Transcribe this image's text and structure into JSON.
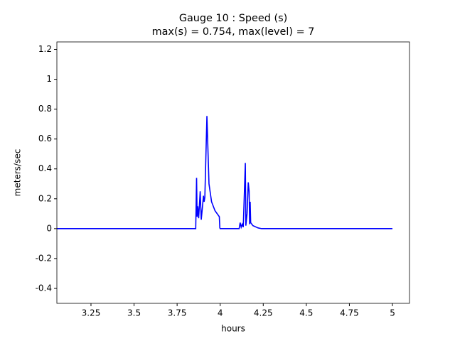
{
  "chart_data": {
    "type": "line",
    "title": "Gauge 10 : Speed (s)",
    "subtitle": "max(s) =   0.754,    max(level) = 7",
    "x_label": "hours",
    "y_label": "meters/sec",
    "xlim": [
      3.052,
      5.099
    ],
    "ylim": [
      -0.5,
      1.25
    ],
    "xticks": [
      3.25,
      3.5,
      3.75,
      4.0,
      4.25,
      4.5,
      4.75,
      5.0
    ],
    "yticks": [
      -0.4,
      -0.2,
      0.0,
      0.2,
      0.4,
      0.6,
      0.8,
      1.0,
      1.2
    ],
    "grid": false,
    "series": [
      {
        "name": "s",
        "color": "#0000ff",
        "x": [
          3.052,
          3.858,
          3.863,
          3.866,
          3.87,
          3.875,
          3.884,
          3.89,
          3.895,
          3.903,
          3.907,
          3.911,
          3.923,
          3.935,
          3.95,
          3.97,
          3.995,
          3.998,
          4.0,
          4.11,
          4.116,
          4.122,
          4.128,
          4.134,
          4.146,
          4.149,
          4.156,
          4.163,
          4.168,
          4.171,
          4.174,
          4.177,
          4.19,
          4.22,
          4.24,
          5.0
        ],
        "values": [
          0,
          0,
          0.34,
          0.08,
          0.15,
          0.07,
          0.25,
          0.06,
          0.12,
          0.22,
          0.18,
          0.21,
          0.754,
          0.3,
          0.18,
          0.12,
          0.08,
          0.005,
          0,
          0,
          0.04,
          0.01,
          0.03,
          0.01,
          0.44,
          0.02,
          0.1,
          0.31,
          0.25,
          0.03,
          0.18,
          0.04,
          0.02,
          0.005,
          0,
          0
        ]
      }
    ]
  }
}
